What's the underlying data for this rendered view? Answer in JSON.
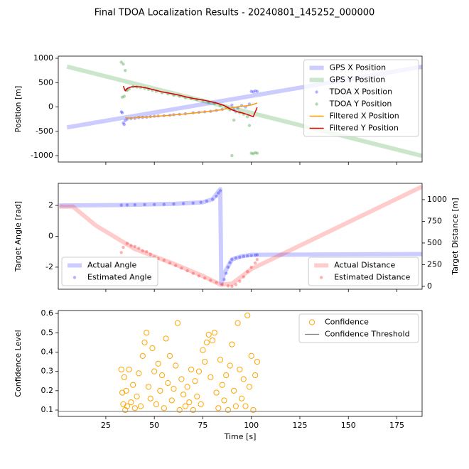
{
  "title": "Final TDOA Localization Results - 20240801_145252_000000",
  "chart_data": [
    {
      "type": "line",
      "ylabel": "Position [m]",
      "xlim": [
        0.5,
        188
      ],
      "ylim": [
        -1131,
        1044
      ],
      "xticks": [
        25,
        50,
        75,
        100,
        125,
        150,
        175
      ],
      "yticks": [
        -1000,
        -500,
        0,
        500,
        1000
      ],
      "show_xticklabels": false,
      "legend": "upper right",
      "series": [
        {
          "name": "GPS X Position",
          "style": "line",
          "color": "#0000ff",
          "alpha": 0.2,
          "linewidth": 6,
          "x": [
            5,
            188
          ],
          "values": [
            -420,
            825
          ]
        },
        {
          "name": "GPS Y Position",
          "style": "line",
          "color": "#008000",
          "alpha": 0.2,
          "linewidth": 6,
          "x": [
            5,
            188
          ],
          "values": [
            830,
            -1005
          ]
        },
        {
          "name": "TDOA X Position",
          "style": "scatter",
          "color": "#0000ff",
          "alpha": 0.3,
          "x": [
            33,
            33.5,
            34,
            34.5,
            35,
            36,
            38,
            40,
            42,
            44,
            46,
            48,
            50,
            52,
            55,
            58,
            60,
            63,
            66,
            70,
            73,
            76,
            79,
            82,
            85,
            88,
            90,
            91,
            93,
            95,
            97,
            99,
            100,
            101,
            102,
            103
          ],
          "values": [
            -100,
            -120,
            -330,
            -360,
            -280,
            -250,
            -240,
            -235,
            -220,
            -215,
            -210,
            -200,
            -190,
            -185,
            -180,
            -170,
            -160,
            -150,
            -140,
            -120,
            -110,
            -100,
            -90,
            -70,
            -50,
            -20,
            40,
            -60,
            -20,
            30,
            0,
            60,
            320,
            310,
            330,
            320
          ]
        },
        {
          "name": "TDOA Y Position",
          "style": "scatter",
          "color": "#008000",
          "alpha": 0.3,
          "x": [
            33,
            34,
            35,
            33.5,
            34.5,
            35.5,
            36,
            37,
            39,
            41,
            43,
            45,
            47,
            49,
            51,
            54,
            57,
            60,
            63,
            66,
            69,
            72,
            75,
            78,
            81,
            84,
            87,
            89,
            90,
            91,
            92,
            94,
            96,
            98,
            99,
            100,
            101,
            102,
            103
          ],
          "values": [
            920,
            880,
            750,
            200,
            220,
            350,
            340,
            370,
            420,
            410,
            400,
            380,
            360,
            340,
            320,
            290,
            270,
            240,
            220,
            190,
            170,
            150,
            130,
            100,
            70,
            30,
            0,
            -60,
            -1000,
            -270,
            -100,
            -120,
            -150,
            -200,
            -380,
            -950,
            -960,
            -940,
            -950
          ]
        },
        {
          "name": "Filtered X Position",
          "style": "line",
          "color": "#ff9900",
          "alpha": 1,
          "linewidth": 1.5,
          "x": [
            35,
            38,
            42,
            46,
            50,
            55,
            60,
            65,
            70,
            75,
            80,
            84,
            88,
            91,
            94,
            97,
            100,
            103
          ],
          "values": [
            -220,
            -230,
            -215,
            -205,
            -195,
            -180,
            -165,
            -145,
            -125,
            -105,
            -85,
            -60,
            -30,
            -10,
            10,
            20,
            40,
            80
          ]
        },
        {
          "name": "Filtered Y Position",
          "style": "line",
          "color": "#dd0000",
          "alpha": 1,
          "linewidth": 1.5,
          "x": [
            34,
            35,
            36,
            38,
            40,
            43,
            46,
            50,
            54,
            58,
            62,
            66,
            70,
            74,
            78,
            82,
            86,
            90,
            93,
            96,
            99,
            101,
            103
          ],
          "values": [
            430,
            330,
            380,
            410,
            420,
            410,
            390,
            350,
            310,
            280,
            250,
            210,
            175,
            150,
            120,
            80,
            30,
            -60,
            -100,
            -130,
            -170,
            -200,
            -10
          ]
        }
      ]
    },
    {
      "type": "line",
      "ylabel": "Target Angle [rad]",
      "y2label": "Target Distance [m]",
      "xlim": [
        0.5,
        188
      ],
      "ylim": [
        -3.43,
        3.43
      ],
      "y2lim": [
        -33,
        1188
      ],
      "xticks": [
        25,
        50,
        75,
        100,
        125,
        150,
        175
      ],
      "yticks": [
        -2,
        0,
        2
      ],
      "y2ticks": [
        0,
        250,
        500,
        750,
        1000
      ],
      "show_xticklabels": false,
      "legend": "lower left",
      "legend2": "lower right",
      "series": [
        {
          "name": "Actual Angle",
          "style": "line",
          "color": "#0000ff",
          "alpha": 0.2,
          "linewidth": 6,
          "x": [
            1,
            30,
            60,
            75,
            80,
            83,
            84,
            84.5,
            86,
            90,
            95,
            100,
            188
          ],
          "values": [
            2.0,
            2.02,
            2.1,
            2.2,
            2.4,
            2.9,
            3.05,
            -3.05,
            -2.4,
            -1.5,
            -1.3,
            -1.2,
            -1.15
          ]
        },
        {
          "name": "Estimated Angle",
          "style": "scatter",
          "color": "#0000ff",
          "alpha": 0.3,
          "x": [
            33,
            36,
            40,
            45,
            50,
            55,
            60,
            65,
            70,
            74,
            77,
            80,
            82,
            83,
            84,
            86,
            87,
            88,
            89,
            90,
            92,
            94,
            96,
            98,
            100,
            102,
            103
          ],
          "values": [
            2.02,
            2.03,
            2.04,
            2.05,
            2.06,
            2.07,
            2.09,
            2.12,
            2.15,
            2.2,
            2.28,
            2.4,
            2.6,
            2.8,
            2.95,
            -2.8,
            -2.4,
            -2.0,
            -1.7,
            -1.5,
            -1.4,
            -1.35,
            -1.3,
            -1.27,
            -1.25,
            -1.22,
            -1.2
          ]
        },
        {
          "name": "Actual Distance",
          "style": "line",
          "axis": "y2",
          "color": "#ff0000",
          "alpha": 0.2,
          "linewidth": 6,
          "x": [
            1,
            8,
            20,
            40,
            60,
            75,
            84,
            90,
            100,
            188
          ],
          "values": [
            920,
            920,
            700,
            430,
            260,
            120,
            20,
            30,
            200,
            1150
          ]
        },
        {
          "name": "Estimated Distance",
          "style": "scatter",
          "axis": "y2",
          "color": "#ff0000",
          "alpha": 0.3,
          "x": [
            33,
            34,
            36,
            38,
            40,
            42,
            44,
            46,
            48,
            50,
            52,
            55,
            58,
            61,
            64,
            67,
            70,
            73,
            76,
            79,
            82,
            85,
            88,
            90,
            92,
            94,
            96,
            98,
            100,
            102,
            103
          ],
          "values": [
            390,
            450,
            495,
            470,
            460,
            440,
            410,
            400,
            370,
            340,
            320,
            300,
            270,
            240,
            210,
            180,
            150,
            120,
            95,
            70,
            45,
            20,
            5,
            0,
            20,
            60,
            110,
            170,
            220,
            270,
            310
          ]
        }
      ]
    },
    {
      "type": "scatter",
      "ylabel": "Confidence Level",
      "xlabel": "Time [s]",
      "xlim": [
        0.5,
        188
      ],
      "ylim": [
        0.067,
        0.615
      ],
      "xticks": [
        25,
        50,
        75,
        100,
        125,
        150,
        175
      ],
      "yticks": [
        0.1,
        0.2,
        0.3,
        0.4,
        0.5,
        0.6
      ],
      "show_xticklabels": true,
      "legend": "upper right",
      "series": [
        {
          "name": "Confidence",
          "style": "scatter",
          "marker": "open",
          "color": "#ffa500",
          "alpha": 1,
          "x": [
            33,
            33.5,
            34,
            34.5,
            35,
            35.5,
            36,
            37,
            38,
            39,
            40,
            41,
            42,
            43,
            44,
            45,
            46,
            47,
            48,
            49,
            50,
            51,
            52,
            53,
            54,
            55,
            56,
            57,
            58,
            59,
            60,
            61,
            62,
            63,
            64,
            65,
            66,
            67,
            68,
            69,
            70,
            71,
            72,
            73,
            74,
            75,
            76,
            77,
            78,
            79,
            80,
            81,
            82,
            83,
            84,
            85,
            86,
            87,
            88,
            89,
            90,
            91,
            92,
            93,
            94,
            95,
            96,
            97,
            98,
            99,
            100,
            101,
            102,
            103
          ],
          "values": [
            0.31,
            0.19,
            0.13,
            0.27,
            0.1,
            0.2,
            0.12,
            0.31,
            0.14,
            0.23,
            0.11,
            0.17,
            0.29,
            0.12,
            0.38,
            0.45,
            0.5,
            0.22,
            0.16,
            0.42,
            0.3,
            0.13,
            0.34,
            0.2,
            0.28,
            0.11,
            0.47,
            0.24,
            0.38,
            0.15,
            0.21,
            0.33,
            0.55,
            0.1,
            0.26,
            0.18,
            0.12,
            0.22,
            0.14,
            0.31,
            0.1,
            0.25,
            0.17,
            0.3,
            0.13,
            0.41,
            0.35,
            0.45,
            0.49,
            0.27,
            0.46,
            0.5,
            0.19,
            0.11,
            0.36,
            0.23,
            0.15,
            0.28,
            0.1,
            0.33,
            0.44,
            0.2,
            0.12,
            0.55,
            0.31,
            0.16,
            0.26,
            0.12,
            0.59,
            0.22,
            0.38,
            0.1,
            0.28,
            0.35
          ]
        },
        {
          "name": "Confidence Threshold",
          "style": "hline",
          "color": "#808080",
          "alpha": 1,
          "linewidth": 1.2,
          "values": [
            0.093
          ]
        }
      ]
    }
  ]
}
